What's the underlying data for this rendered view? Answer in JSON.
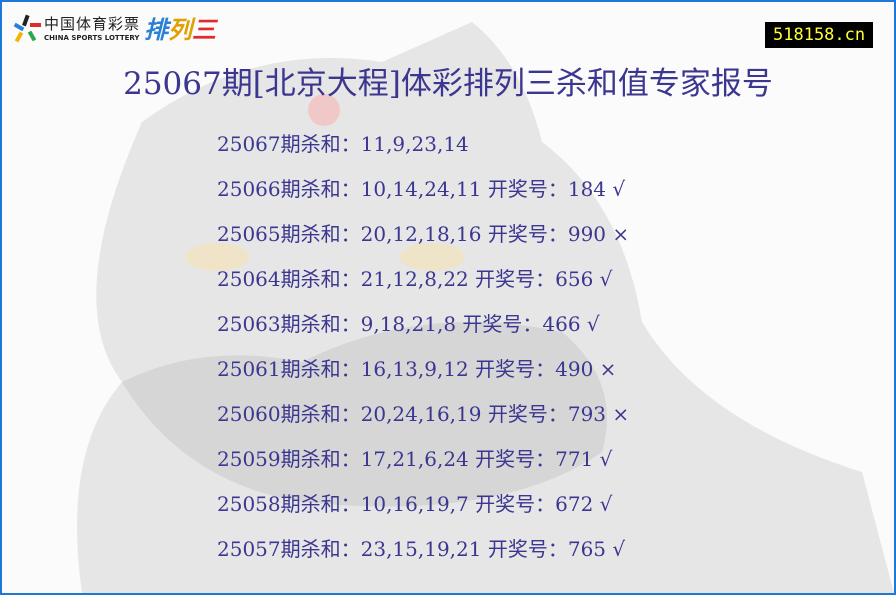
{
  "logo": {
    "cn": "中国体育彩票",
    "en": "CHINA SPORTS LOTTERY",
    "product": "排列三"
  },
  "site_badge": "518158.cn",
  "title": "25067期[北京大程]体彩排列三杀和值专家报号",
  "rows": [
    {
      "text": "25067期杀和：11,9,23,14"
    },
    {
      "text": "25066期杀和：10,14,24,11 开奖号：184 √"
    },
    {
      "text": "25065期杀和：20,12,18,16 开奖号：990 ×"
    },
    {
      "text": "25064期杀和：21,12,8,22 开奖号：656 √"
    },
    {
      "text": "25063期杀和：9,18,21,8 开奖号：466 √"
    },
    {
      "text": "25061期杀和：16,13,9,12 开奖号：490 ×"
    },
    {
      "text": "25060期杀和：20,24,16,19 开奖号：793 ×"
    },
    {
      "text": "25059期杀和：17,21,6,24 开奖号：771 √"
    },
    {
      "text": "25058期杀和：10,16,19,7 开奖号：672 √"
    },
    {
      "text": "25057期杀和：23,15,19,21 开奖号：765 √"
    }
  ],
  "colors": {
    "text": "#3b3690",
    "border": "#1e78d8",
    "badge_bg": "#000000",
    "badge_text": "#ffff33"
  }
}
